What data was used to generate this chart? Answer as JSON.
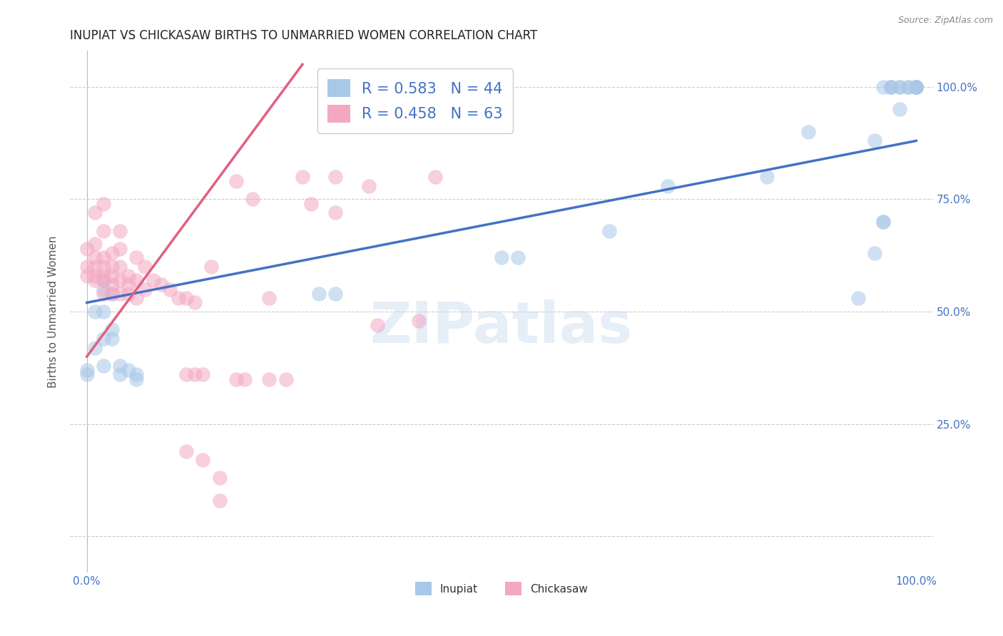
{
  "title": "INUPIAT VS CHICKASAW BIRTHS TO UNMARRIED WOMEN CORRELATION CHART",
  "source": "Source: ZipAtlas.com",
  "ylabel": "Births to Unmarried Women",
  "watermark": "ZIPatlas",
  "xlim": [
    -0.02,
    1.02
  ],
  "ylim": [
    -0.08,
    1.08
  ],
  "xticks": [
    0.0,
    0.25,
    0.5,
    0.75,
    1.0
  ],
  "xtick_labels": [
    "0.0%",
    "",
    "",
    "",
    "100.0%"
  ],
  "ytick_vals": [
    0.0,
    0.25,
    0.5,
    0.75,
    1.0
  ],
  "ytick_labels_right": [
    "",
    "25.0%",
    "50.0%",
    "75.0%",
    "100.0%"
  ],
  "blue_scatter_x": [
    0.0,
    0.0,
    0.01,
    0.01,
    0.02,
    0.02,
    0.02,
    0.02,
    0.02,
    0.03,
    0.03,
    0.03,
    0.04,
    0.04,
    0.05,
    0.06,
    0.06,
    0.28,
    0.3,
    0.5,
    0.52,
    0.63,
    0.7,
    0.82,
    0.87,
    0.93,
    0.95,
    0.95,
    0.96,
    0.96,
    0.96,
    0.97,
    0.97,
    0.97,
    0.98,
    0.98,
    0.98,
    0.99,
    0.99,
    1.0,
    1.0,
    1.0,
    1.0,
    1.0
  ],
  "blue_scatter_y": [
    0.36,
    0.37,
    0.42,
    0.5,
    0.38,
    0.44,
    0.5,
    0.55,
    0.57,
    0.44,
    0.46,
    0.54,
    0.36,
    0.38,
    0.37,
    0.35,
    0.36,
    0.54,
    0.54,
    0.62,
    0.62,
    0.68,
    0.78,
    0.8,
    0.9,
    0.53,
    0.63,
    0.88,
    0.7,
    0.7,
    1.0,
    1.0,
    1.0,
    1.0,
    0.95,
    1.0,
    1.0,
    1.0,
    1.0,
    1.0,
    1.0,
    1.0,
    1.0,
    1.0
  ],
  "pink_scatter_x": [
    0.0,
    0.0,
    0.0,
    0.01,
    0.01,
    0.01,
    0.01,
    0.01,
    0.01,
    0.02,
    0.02,
    0.02,
    0.02,
    0.02,
    0.02,
    0.02,
    0.03,
    0.03,
    0.03,
    0.03,
    0.03,
    0.04,
    0.04,
    0.04,
    0.04,
    0.04,
    0.05,
    0.05,
    0.05,
    0.06,
    0.06,
    0.06,
    0.07,
    0.07,
    0.08,
    0.09,
    0.1,
    0.11,
    0.12,
    0.13,
    0.15,
    0.18,
    0.2,
    0.22,
    0.26,
    0.27,
    0.3,
    0.3,
    0.34,
    0.35,
    0.4,
    0.42,
    0.12,
    0.13,
    0.14,
    0.18,
    0.19,
    0.22,
    0.24,
    0.12,
    0.14,
    0.16,
    0.16
  ],
  "pink_scatter_y": [
    0.58,
    0.6,
    0.64,
    0.57,
    0.58,
    0.6,
    0.62,
    0.65,
    0.72,
    0.54,
    0.57,
    0.58,
    0.6,
    0.62,
    0.68,
    0.74,
    0.54,
    0.56,
    0.58,
    0.6,
    0.63,
    0.54,
    0.57,
    0.6,
    0.64,
    0.68,
    0.54,
    0.56,
    0.58,
    0.53,
    0.57,
    0.62,
    0.55,
    0.6,
    0.57,
    0.56,
    0.55,
    0.53,
    0.53,
    0.52,
    0.6,
    0.79,
    0.75,
    0.53,
    0.8,
    0.74,
    0.8,
    0.72,
    0.78,
    0.47,
    0.48,
    0.8,
    0.36,
    0.36,
    0.36,
    0.35,
    0.35,
    0.35,
    0.35,
    0.19,
    0.17,
    0.13,
    0.08
  ],
  "blue_line_x0": 0.0,
  "blue_line_y0": 0.52,
  "blue_line_x1": 1.0,
  "blue_line_y1": 0.88,
  "pink_line_x0": 0.0,
  "pink_line_y0": 0.4,
  "pink_line_x1": 0.26,
  "pink_line_y1": 1.05,
  "grid_color": "#cccccc",
  "bg_color": "#ffffff",
  "blue_color": "#a8c8e8",
  "blue_line_color": "#4472c4",
  "pink_color": "#f4a8c0",
  "pink_line_color": "#e06080",
  "marker_size": 220,
  "marker_alpha": 0.55,
  "title_fontsize": 12,
  "axis_fontsize": 11,
  "legend_fontsize": 15
}
